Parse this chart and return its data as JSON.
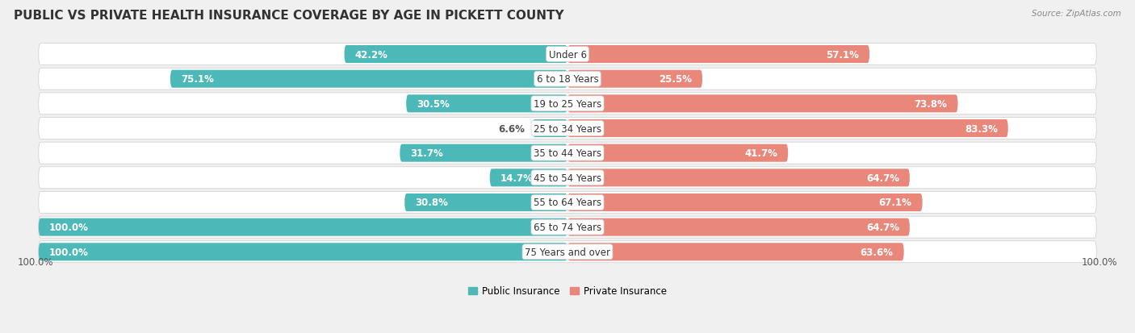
{
  "title": "PUBLIC VS PRIVATE HEALTH INSURANCE COVERAGE BY AGE IN PICKETT COUNTY",
  "source": "Source: ZipAtlas.com",
  "categories": [
    "Under 6",
    "6 to 18 Years",
    "19 to 25 Years",
    "25 to 34 Years",
    "35 to 44 Years",
    "45 to 54 Years",
    "55 to 64 Years",
    "65 to 74 Years",
    "75 Years and over"
  ],
  "public_values": [
    42.2,
    75.1,
    30.5,
    6.6,
    31.7,
    14.7,
    30.8,
    100.0,
    100.0
  ],
  "private_values": [
    57.1,
    25.5,
    73.8,
    83.3,
    41.7,
    64.7,
    67.1,
    64.7,
    63.6
  ],
  "public_color": "#4db8b8",
  "private_color": "#e8877a",
  "public_color_light": "#a8dede",
  "private_color_light": "#f0b8ae",
  "public_label": "Public Insurance",
  "private_label": "Private Insurance",
  "bg_color": "#f0f0f0",
  "row_bg": "#e8e8e8",
  "label_color_inside": "#ffffff",
  "label_color_outside": "#555555",
  "axis_label_left": "100.0%",
  "axis_label_right": "100.0%",
  "title_fontsize": 11,
  "label_fontsize": 8.5,
  "category_fontsize": 8.5,
  "axis_fontsize": 8.5
}
